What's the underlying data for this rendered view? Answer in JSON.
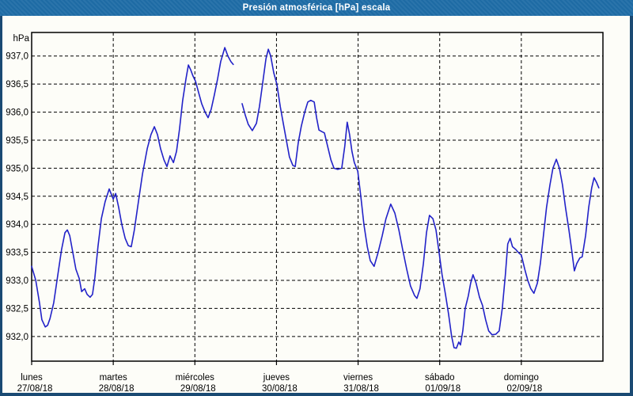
{
  "window": {
    "title": "Presión atmosférica [hPa] escala"
  },
  "colors": {
    "titlebar_bg": "#1f6da7",
    "titlebar_text": "#ffffff",
    "window_border": "#1a4a73",
    "background": "#fdfdf8",
    "plot_border": "#000000",
    "grid": "#000000",
    "line": "#2222c8",
    "label_text": "#000000"
  },
  "chart_data": {
    "type": "line",
    "title": "Presión atmosférica [hPa] escala",
    "y_axis": {
      "unit_label": "hPa",
      "tick_values": [
        937.0,
        936.5,
        936.0,
        935.5,
        935.0,
        934.5,
        934.0,
        933.5,
        933.0,
        932.5,
        932.0
      ],
      "tick_labels": [
        "937,0",
        "936,5",
        "936,0",
        "935,5",
        "935,0",
        "934,5",
        "934,0",
        "933,5",
        "933,0",
        "932,5",
        "932,0"
      ],
      "ylim": [
        931.56,
        937.42
      ],
      "grid": true
    },
    "x_axis": {
      "hours_total": 168,
      "grid": true,
      "days": [
        {
          "name": "lunes",
          "date": "27/08/18",
          "start_hour": 0
        },
        {
          "name": "martes",
          "date": "28/08/18",
          "start_hour": 24
        },
        {
          "name": "miércoles",
          "date": "29/08/18",
          "start_hour": 48
        },
        {
          "name": "jueves",
          "date": "30/08/18",
          "start_hour": 72
        },
        {
          "name": "viernes",
          "date": "31/08/18",
          "start_hour": 96
        },
        {
          "name": "sábado",
          "date": "01/09/18",
          "start_hour": 120
        },
        {
          "name": "domingo",
          "date": "02/09/18",
          "start_hour": 144
        }
      ]
    },
    "series": [
      {
        "name": "Presión atmosférica",
        "unit": "hPa",
        "color": "#2222c8",
        "segments": [
          [
            [
              0,
              933.25
            ],
            [
              1.2,
              933.0
            ],
            [
              2.3,
              932.6
            ],
            [
              3,
              932.3
            ],
            [
              4,
              932.17
            ],
            [
              4.7,
              932.2
            ],
            [
              5.4,
              932.32
            ],
            [
              6.5,
              932.6
            ],
            [
              7.7,
              933.1
            ],
            [
              8.8,
              933.55
            ],
            [
              9.8,
              933.85
            ],
            [
              10.5,
              933.9
            ],
            [
              11.2,
              933.8
            ],
            [
              12.1,
              933.5
            ],
            [
              13,
              933.2
            ],
            [
              14,
              933.03
            ],
            [
              14.7,
              932.8
            ],
            [
              15.6,
              932.85
            ],
            [
              16.3,
              932.75
            ],
            [
              17.2,
              932.7
            ],
            [
              17.9,
              932.75
            ],
            [
              18.6,
              933.05
            ],
            [
              19.5,
              933.6
            ],
            [
              20.5,
              934.1
            ],
            [
              21.6,
              934.4
            ],
            [
              22.8,
              934.63
            ],
            [
              24,
              934.45
            ],
            [
              24.7,
              934.55
            ],
            [
              25.6,
              934.3
            ],
            [
              26.5,
              934.0
            ],
            [
              27.5,
              933.75
            ],
            [
              28.4,
              933.62
            ],
            [
              29.3,
              933.6
            ],
            [
              30.2,
              933.9
            ],
            [
              31.4,
              934.4
            ],
            [
              32.6,
              934.9
            ],
            [
              34,
              935.35
            ],
            [
              35.1,
              935.6
            ],
            [
              36.1,
              935.74
            ],
            [
              37,
              935.6
            ],
            [
              37.9,
              935.35
            ],
            [
              38.9,
              935.15
            ],
            [
              39.8,
              935.03
            ],
            [
              40.7,
              935.22
            ],
            [
              41.7,
              935.1
            ],
            [
              42.6,
              935.3
            ],
            [
              43.5,
              935.7
            ],
            [
              44.4,
              936.2
            ],
            [
              45.4,
              936.6
            ],
            [
              46.1,
              936.84
            ],
            [
              46.8,
              936.75
            ],
            [
              47.4,
              936.65
            ],
            [
              48.2,
              936.55
            ],
            [
              49.1,
              936.35
            ],
            [
              50,
              936.15
            ],
            [
              51,
              936.0
            ],
            [
              51.9,
              935.9
            ],
            [
              52.8,
              936.05
            ],
            [
              53.7,
              936.3
            ],
            [
              54.7,
              936.6
            ],
            [
              55.6,
              936.9
            ],
            [
              56.8,
              937.15
            ],
            [
              57.7,
              937.0
            ],
            [
              58.6,
              936.9
            ],
            [
              59.3,
              936.85
            ]
          ],
          [
            [
              61.9,
              936.15
            ],
            [
              62.8,
              935.95
            ],
            [
              63.7,
              935.78
            ],
            [
              64.9,
              935.67
            ],
            [
              66.1,
              935.8
            ],
            [
              67,
              936.1
            ],
            [
              67.9,
              936.5
            ],
            [
              68.9,
              936.95
            ],
            [
              69.6,
              937.12
            ],
            [
              70.3,
              937.0
            ],
            [
              71.2,
              936.7
            ],
            [
              72.1,
              936.5
            ],
            [
              73.1,
              936.1
            ],
            [
              74,
              935.8
            ],
            [
              74.9,
              935.5
            ],
            [
              75.8,
              935.2
            ],
            [
              76.8,
              935.05
            ],
            [
              77.5,
              935.03
            ],
            [
              78.4,
              935.45
            ],
            [
              79.3,
              935.75
            ],
            [
              80.3,
              936.0
            ],
            [
              81.2,
              936.18
            ],
            [
              82.1,
              936.21
            ],
            [
              83.1,
              936.18
            ],
            [
              83.8,
              935.9
            ],
            [
              84.5,
              935.68
            ],
            [
              85.4,
              935.65
            ],
            [
              86.1,
              935.63
            ],
            [
              87,
              935.4
            ],
            [
              88,
              935.15
            ],
            [
              88.9,
              935.0
            ],
            [
              90,
              934.98
            ],
            [
              91.2,
              935.0
            ],
            [
              92.1,
              935.4
            ],
            [
              92.8,
              935.82
            ],
            [
              93.5,
              935.6
            ],
            [
              94.2,
              935.3
            ],
            [
              94.9,
              935.1
            ],
            [
              95.9,
              934.95
            ],
            [
              96.8,
              934.5
            ],
            [
              97.7,
              934.0
            ],
            [
              98.7,
              933.6
            ],
            [
              99.6,
              933.35
            ],
            [
              100.7,
              933.25
            ],
            [
              101.9,
              933.5
            ],
            [
              103.1,
              933.8
            ],
            [
              104.2,
              934.1
            ],
            [
              105.6,
              934.36
            ],
            [
              106.8,
              934.2
            ],
            [
              108,
              933.9
            ],
            [
              109.1,
              933.55
            ],
            [
              110.3,
              933.2
            ],
            [
              111.4,
              932.9
            ],
            [
              112.6,
              932.73
            ],
            [
              113.3,
              932.68
            ],
            [
              114.2,
              932.85
            ],
            [
              115.2,
              933.3
            ],
            [
              116.1,
              933.85
            ],
            [
              117,
              934.16
            ],
            [
              118,
              934.1
            ],
            [
              118.9,
              933.9
            ],
            [
              119.8,
              933.5
            ],
            [
              120.7,
              933.1
            ],
            [
              121.7,
              932.75
            ],
            [
              122.6,
              932.4
            ],
            [
              123.5,
              932.0
            ],
            [
              124.2,
              931.8
            ],
            [
              124.9,
              931.79
            ],
            [
              125.6,
              931.9
            ],
            [
              126.1,
              931.85
            ],
            [
              126.8,
              932.1
            ],
            [
              127.5,
              932.5
            ],
            [
              128.4,
              932.72
            ],
            [
              129.1,
              932.95
            ],
            [
              129.8,
              933.1
            ],
            [
              130.7,
              932.95
            ],
            [
              131.7,
              932.7
            ],
            [
              132.6,
              932.55
            ],
            [
              133.5,
              932.3
            ],
            [
              134.4,
              932.1
            ],
            [
              135.4,
              932.03
            ],
            [
              136.5,
              932.04
            ],
            [
              137.5,
              932.1
            ],
            [
              138.4,
              932.5
            ],
            [
              139.3,
              933.1
            ],
            [
              140,
              933.65
            ],
            [
              140.7,
              933.75
            ],
            [
              141.4,
              933.6
            ],
            [
              142.4,
              933.55
            ],
            [
              143.1,
              933.5
            ],
            [
              144,
              933.45
            ],
            [
              145,
              933.2
            ],
            [
              145.9,
              933.0
            ],
            [
              146.8,
              932.85
            ],
            [
              147.7,
              932.77
            ],
            [
              148.7,
              932.95
            ],
            [
              149.6,
              933.3
            ],
            [
              150.5,
              933.8
            ],
            [
              151.4,
              934.3
            ],
            [
              152.4,
              934.7
            ],
            [
              153.3,
              935.0
            ],
            [
              154.3,
              935.16
            ],
            [
              155.2,
              935.0
            ],
            [
              156.1,
              934.7
            ],
            [
              157,
              934.3
            ],
            [
              158,
              933.9
            ],
            [
              158.9,
              933.5
            ],
            [
              159.6,
              933.17
            ],
            [
              160.3,
              933.3
            ],
            [
              161.2,
              933.4
            ],
            [
              161.9,
              933.42
            ],
            [
              162.9,
              933.8
            ],
            [
              163.8,
              934.3
            ],
            [
              164.7,
              934.65
            ],
            [
              165.4,
              934.83
            ],
            [
              166.1,
              934.75
            ],
            [
              166.8,
              934.65
            ]
          ]
        ]
      }
    ]
  }
}
